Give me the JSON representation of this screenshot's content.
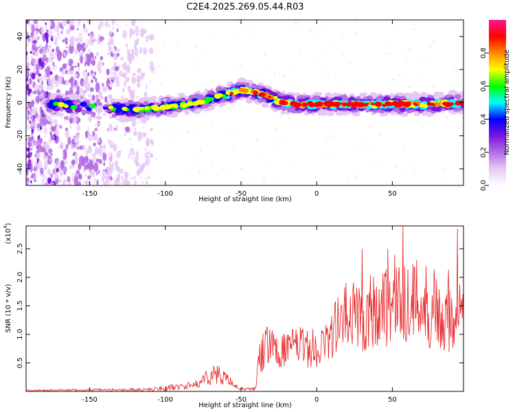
{
  "title": "C2E4.2025.269.05.44.R03",
  "chart_data": [
    {
      "type": "heatmap",
      "name": "spectrogram",
      "xlabel": "Height of straight line (km)",
      "ylabel": "Frequency (Hz)",
      "xlim": [
        -192,
        97
      ],
      "ylim": [
        -50,
        50
      ],
      "xticks": [
        -150,
        -100,
        -50,
        0,
        50
      ],
      "xtick_labels": [
        "-150",
        "-100",
        "-50",
        "0",
        "50"
      ],
      "yticks": [
        -40,
        -20,
        0,
        20,
        40
      ],
      "ytick_labels": [
        "-40",
        "-20",
        "0",
        "20",
        "40"
      ],
      "colorbar": {
        "label": "Normalized spectral amplitude",
        "range": [
          0,
          1
        ],
        "ticks": [
          0.0,
          0.2,
          0.4,
          0.6,
          0.8
        ],
        "tick_labels": [
          "0.0",
          "0.2",
          "0.4",
          "0.6",
          "0.8"
        ],
        "colors": [
          "#ffffff",
          "#e6c8f5",
          "#b46ee6",
          "#7a14e0",
          "#0000ff",
          "#00ffff",
          "#00ff00",
          "#ffff00",
          "#ff8800",
          "#ff0000",
          "#ff1493"
        ]
      },
      "ridge": {
        "x": [
          -192,
          -180,
          -170,
          -160,
          -140,
          -125,
          -115,
          -105,
          -95,
          -85,
          -75,
          -65,
          -55,
          -50,
          -45,
          -40,
          -35,
          -30,
          -25,
          -20,
          -15,
          -10,
          -5,
          0,
          10,
          20,
          40,
          60,
          80,
          97
        ],
        "y": [
          -3,
          -2,
          -1,
          -2,
          -3,
          -4,
          -4,
          -3,
          -2,
          -1,
          1,
          4,
          6,
          8,
          7,
          6,
          5,
          3,
          1,
          0,
          -1,
          -1,
          -1,
          -1,
          -1,
          -1,
          -1,
          -1,
          -1,
          0
        ]
      },
      "noise_region_x": [
        -192,
        -108
      ]
    },
    {
      "type": "line",
      "name": "snr",
      "xlabel": "Height of straight line (km)",
      "ylabel": "SNR (10 * v/v)",
      "scale_label": "(x10",
      "scale_exponent": "4",
      "xlim": [
        -192,
        97
      ],
      "ylim": [
        0,
        2.9
      ],
      "xticks": [
        -150,
        -100,
        -50,
        0,
        50
      ],
      "xtick_labels": [
        "-150",
        "-100",
        "-50",
        "0",
        "50"
      ],
      "yticks": [
        0.5,
        1.0,
        1.5,
        2.0,
        2.5
      ],
      "ytick_labels": [
        "0.5",
        "1.0",
        "1.5",
        "2.0",
        "2.5"
      ],
      "color": "#e8191b",
      "envelope": {
        "x": [
          -192,
          -110,
          -100,
          -90,
          -80,
          -75,
          -70,
          -65,
          -60,
          -55,
          -50,
          -45,
          -40,
          -38,
          -35,
          -30,
          -25,
          -20,
          -15,
          -10,
          -5,
          0,
          5,
          10,
          15,
          20,
          30,
          40,
          50,
          60,
          70,
          80,
          90,
          97
        ],
        "center": [
          0.02,
          0.03,
          0.06,
          0.08,
          0.12,
          0.2,
          0.3,
          0.28,
          0.25,
          0.1,
          0.05,
          0.04,
          0.05,
          0.6,
          0.75,
          0.8,
          0.7,
          0.75,
          0.8,
          0.8,
          0.75,
          0.75,
          0.85,
          1.0,
          1.2,
          1.3,
          1.35,
          1.45,
          1.6,
          1.6,
          1.55,
          1.45,
          1.4,
          1.5
        ],
        "amplitude": [
          0.01,
          0.03,
          0.05,
          0.06,
          0.07,
          0.12,
          0.18,
          0.18,
          0.12,
          0.06,
          0.03,
          0.02,
          0.05,
          0.35,
          0.4,
          0.35,
          0.3,
          0.3,
          0.3,
          0.35,
          0.35,
          0.35,
          0.35,
          0.45,
          0.6,
          0.65,
          0.7,
          0.75,
          0.8,
          0.85,
          0.8,
          0.75,
          0.75,
          0.6
        ]
      },
      "peaks": [
        {
          "x": 57,
          "y": 2.9
        },
        {
          "x": 93,
          "y": 2.85
        },
        {
          "x": 30,
          "y": 2.5
        },
        {
          "x": 47,
          "y": 2.5
        }
      ]
    }
  ]
}
